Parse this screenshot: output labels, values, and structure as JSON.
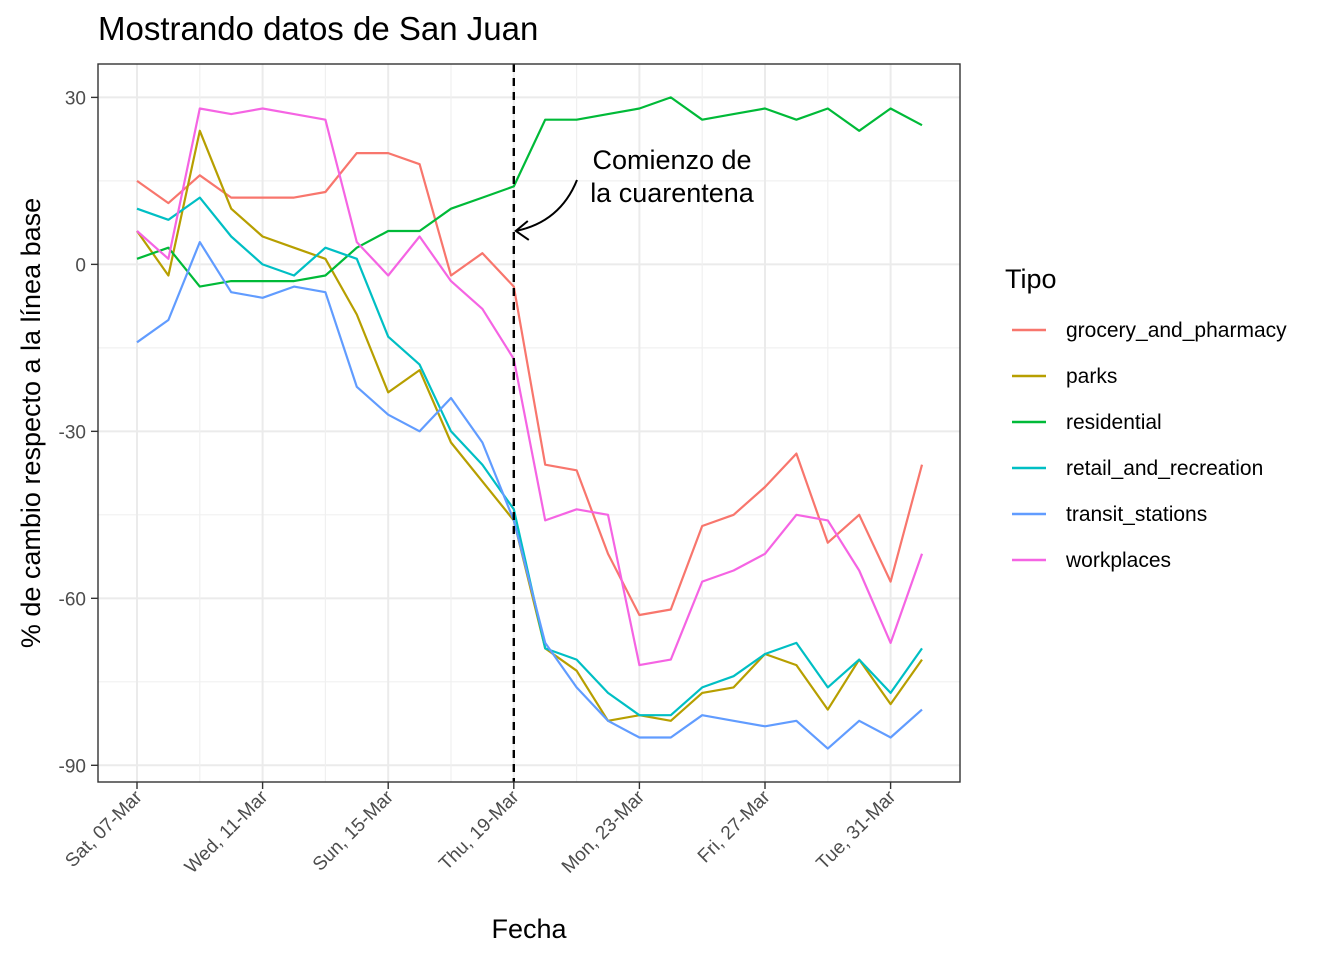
{
  "chart_data": {
    "type": "line",
    "title": "Mostrando datos de San Juan",
    "xlabel": "Fecha",
    "ylabel": "% de cambio respecto a la línea base",
    "ylim": [
      -93,
      36
    ],
    "yticks": [
      30,
      0,
      -30,
      -60,
      -90
    ],
    "x": [
      "2020-03-07",
      "2020-03-08",
      "2020-03-09",
      "2020-03-10",
      "2020-03-11",
      "2020-03-12",
      "2020-03-13",
      "2020-03-14",
      "2020-03-15",
      "2020-03-16",
      "2020-03-17",
      "2020-03-18",
      "2020-03-19",
      "2020-03-20",
      "2020-03-21",
      "2020-03-22",
      "2020-03-23",
      "2020-03-24",
      "2020-03-25",
      "2020-03-26",
      "2020-03-27",
      "2020-03-28",
      "2020-03-29",
      "2020-03-30",
      "2020-03-31",
      "2020-04-01"
    ],
    "x_ticks": [
      {
        "date": "2020-03-07",
        "label": "Sat, 07-Mar"
      },
      {
        "date": "2020-03-11",
        "label": "Wed, 11-Mar"
      },
      {
        "date": "2020-03-15",
        "label": "Sun, 15-Mar"
      },
      {
        "date": "2020-03-19",
        "label": "Thu, 19-Mar"
      },
      {
        "date": "2020-03-23",
        "label": "Mon, 23-Mar"
      },
      {
        "date": "2020-03-27",
        "label": "Fri, 27-Mar"
      },
      {
        "date": "2020-03-31",
        "label": "Tue, 31-Mar"
      }
    ],
    "legend_title": "Tipo",
    "legend_position": "right",
    "grid": true,
    "vline": {
      "date": "2020-03-19",
      "style": "dashed"
    },
    "annotation": {
      "lines": [
        "Comienzo de",
        "la cuarentena"
      ],
      "points_to": {
        "date": "2020-03-19",
        "y": 6
      }
    },
    "series": [
      {
        "name": "grocery_and_pharmacy",
        "color": "#F8766D",
        "values": [
          15,
          11,
          16,
          12,
          12,
          12,
          13,
          20,
          20,
          18,
          -2,
          2,
          -4,
          -36,
          -37,
          -52,
          -63,
          -62,
          -47,
          -45,
          -40,
          -34,
          -50,
          -45,
          -57,
          -36
        ]
      },
      {
        "name": "parks",
        "color": "#B79F00",
        "values": [
          6,
          -2,
          24,
          10,
          5,
          3,
          1,
          -9,
          -23,
          -19,
          -32,
          -39,
          -46,
          -69,
          -73,
          -82,
          -81,
          -82,
          -77,
          -76,
          -70,
          -72,
          -80,
          -71,
          -79,
          -71
        ]
      },
      {
        "name": "residential",
        "color": "#00BA38",
        "values": [
          1,
          3,
          -4,
          -3,
          -3,
          -3,
          -2,
          3,
          6,
          6,
          10,
          12,
          14,
          26,
          26,
          27,
          28,
          30,
          26,
          27,
          28,
          26,
          28,
          24,
          28,
          25
        ]
      },
      {
        "name": "retail_and_recreation",
        "color": "#00BFC4",
        "values": [
          10,
          8,
          12,
          5,
          0,
          -2,
          3,
          1,
          -13,
          -18,
          -30,
          -36,
          -44,
          -69,
          -71,
          -77,
          -81,
          -81,
          -76,
          -74,
          -70,
          -68,
          -76,
          -71,
          -77,
          -69
        ]
      },
      {
        "name": "transit_stations",
        "color": "#619CFF",
        "values": [
          -14,
          -10,
          4,
          -5,
          -6,
          -4,
          -5,
          -22,
          -27,
          -30,
          -24,
          -32,
          -46,
          -68,
          -76,
          -82,
          -85,
          -85,
          -81,
          -82,
          -83,
          -82,
          -87,
          -82,
          -85,
          -80
        ]
      },
      {
        "name": "workplaces",
        "color": "#F564E3",
        "values": [
          6,
          1,
          28,
          27,
          28,
          27,
          26,
          4,
          -2,
          5,
          -3,
          -8,
          -17,
          -46,
          -44,
          -45,
          -72,
          -71,
          -57,
          -55,
          -52,
          -45,
          -46,
          -55,
          -68,
          -52
        ]
      }
    ]
  }
}
